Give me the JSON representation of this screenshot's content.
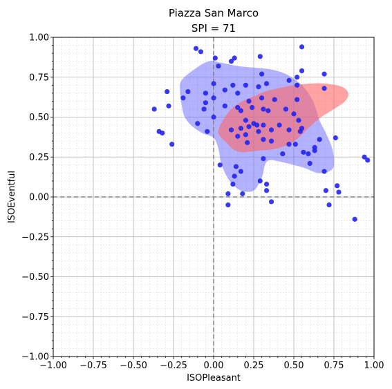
{
  "chart_data": {
    "type": "scatter",
    "title": "Piazza San Marco",
    "subtitle": "SPI = 71",
    "xlabel": "ISOPleasant",
    "ylabel": "ISOEventful",
    "xlim": [
      -1.0,
      1.0
    ],
    "ylim": [
      -1.0,
      1.0
    ],
    "xticks": [
      "−1.00",
      "−0.75",
      "−0.50",
      "−0.25",
      "0.00",
      "0.25",
      "0.50",
      "0.75",
      "1.00"
    ],
    "yticks": [
      "−1.00",
      "−0.75",
      "−0.50",
      "−0.25",
      "0.00",
      "0.25",
      "0.50",
      "0.75",
      "1.00"
    ],
    "grid": true,
    "colors": {
      "points": "#2222ee",
      "blue_region": "#6666ff",
      "red_region": "#ff6666",
      "crosshair": "#808080"
    },
    "regions": [
      {
        "color": "blue",
        "outline": [
          [
            -0.2,
            0.73
          ],
          [
            -0.12,
            0.8
          ],
          [
            -0.03,
            0.85
          ],
          [
            0.05,
            0.84
          ],
          [
            0.15,
            0.82
          ],
          [
            0.25,
            0.81
          ],
          [
            0.35,
            0.8
          ],
          [
            0.45,
            0.77
          ],
          [
            0.55,
            0.7
          ],
          [
            0.62,
            0.6
          ],
          [
            0.66,
            0.48
          ],
          [
            0.7,
            0.4
          ],
          [
            0.74,
            0.3
          ],
          [
            0.75,
            0.2
          ],
          [
            0.72,
            0.16
          ],
          [
            0.65,
            0.15
          ],
          [
            0.57,
            0.18
          ],
          [
            0.5,
            0.2
          ],
          [
            0.42,
            0.22
          ],
          [
            0.35,
            0.23
          ],
          [
            0.32,
            0.2
          ],
          [
            0.3,
            0.12
          ],
          [
            0.25,
            0.04
          ],
          [
            0.17,
            0.04
          ],
          [
            0.1,
            0.1
          ],
          [
            0.05,
            0.2
          ],
          [
            0.03,
            0.3
          ],
          [
            0.0,
            0.37
          ],
          [
            -0.07,
            0.4
          ],
          [
            -0.13,
            0.44
          ],
          [
            -0.18,
            0.5
          ],
          [
            -0.2,
            0.58
          ],
          [
            -0.21,
            0.66
          ]
        ]
      },
      {
        "color": "red",
        "outline": [
          [
            0.03,
            0.42
          ],
          [
            0.07,
            0.5
          ],
          [
            0.12,
            0.56
          ],
          [
            0.18,
            0.6
          ],
          [
            0.25,
            0.63
          ],
          [
            0.32,
            0.66
          ],
          [
            0.4,
            0.68
          ],
          [
            0.5,
            0.7
          ],
          [
            0.6,
            0.71
          ],
          [
            0.7,
            0.71
          ],
          [
            0.8,
            0.69
          ],
          [
            0.84,
            0.65
          ],
          [
            0.82,
            0.6
          ],
          [
            0.75,
            0.55
          ],
          [
            0.67,
            0.5
          ],
          [
            0.6,
            0.44
          ],
          [
            0.54,
            0.38
          ],
          [
            0.47,
            0.33
          ],
          [
            0.38,
            0.3
          ],
          [
            0.28,
            0.29
          ],
          [
            0.18,
            0.28
          ],
          [
            0.12,
            0.3
          ],
          [
            0.08,
            0.34
          ],
          [
            0.04,
            0.38
          ]
        ]
      }
    ],
    "points": [
      [
        0.55,
        0.94
      ],
      [
        -0.11,
        0.93
      ],
      [
        -0.08,
        0.91
      ],
      [
        0.01,
        0.87
      ],
      [
        0.29,
        0.88
      ],
      [
        0.13,
        0.87
      ],
      [
        0.11,
        0.85
      ],
      [
        0.03,
        0.82
      ],
      [
        0.55,
        0.79
      ],
      [
        0.52,
        0.75
      ],
      [
        0.69,
        0.77
      ],
      [
        0.47,
        0.73
      ],
      [
        0.3,
        0.77
      ],
      [
        -0.29,
        0.66
      ],
      [
        -0.16,
        0.66
      ],
      [
        -0.19,
        0.62
      ],
      [
        0.07,
        0.67
      ],
      [
        0.12,
        0.7
      ],
      [
        0.2,
        0.7
      ],
      [
        0.28,
        0.69
      ],
      [
        0.33,
        0.71
      ],
      [
        0.0,
        0.71
      ],
      [
        0.15,
        0.65
      ],
      [
        0.22,
        0.6
      ],
      [
        0.3,
        0.62
      ],
      [
        0.38,
        0.61
      ],
      [
        0.52,
        0.61
      ],
      [
        0.52,
        0.7
      ],
      [
        0.69,
        0.68
      ],
      [
        -0.05,
        0.65
      ],
      [
        0.0,
        0.62
      ],
      [
        -0.05,
        0.59
      ],
      [
        -0.37,
        0.55
      ],
      [
        -0.28,
        0.57
      ],
      [
        -0.06,
        0.55
      ],
      [
        0.07,
        0.57
      ],
      [
        0.15,
        0.56
      ],
      [
        0.17,
        0.54
      ],
      [
        0.24,
        0.56
      ],
      [
        0.31,
        0.55
      ],
      [
        0.34,
        0.54
      ],
      [
        0.45,
        0.55
      ],
      [
        0.5,
        0.52
      ],
      [
        0.53,
        0.48
      ],
      [
        0.0,
        0.5
      ],
      [
        -0.1,
        0.46
      ],
      [
        0.2,
        0.48
      ],
      [
        0.27,
        0.45
      ],
      [
        0.31,
        0.45
      ],
      [
        0.36,
        0.42
      ],
      [
        0.41,
        0.45
      ],
      [
        0.47,
        0.42
      ],
      [
        0.55,
        0.43
      ],
      [
        0.17,
        0.43
      ],
      [
        0.11,
        0.42
      ],
      [
        0.2,
        0.39
      ],
      [
        0.22,
        0.44
      ],
      [
        0.25,
        0.46
      ],
      [
        -0.34,
        0.41
      ],
      [
        -0.32,
        0.4
      ],
      [
        -0.04,
        0.41
      ],
      [
        0.15,
        0.38
      ],
      [
        0.28,
        0.41
      ],
      [
        0.54,
        0.41
      ],
      [
        0.31,
        0.36
      ],
      [
        0.21,
        0.34
      ],
      [
        0.36,
        0.35
      ],
      [
        0.47,
        0.33
      ],
      [
        0.51,
        0.33
      ],
      [
        0.66,
        0.36
      ],
      [
        0.76,
        0.37
      ],
      [
        -0.26,
        0.33
      ],
      [
        0.43,
        0.27
      ],
      [
        0.56,
        0.28
      ],
      [
        0.59,
        0.27
      ],
      [
        0.63,
        0.29
      ],
      [
        0.63,
        0.31
      ],
      [
        0.6,
        0.21
      ],
      [
        0.69,
        0.16
      ],
      [
        0.04,
        0.2
      ],
      [
        0.14,
        0.19
      ],
      [
        0.17,
        0.16
      ],
      [
        0.31,
        0.24
      ],
      [
        0.13,
        0.13
      ],
      [
        0.12,
        0.08
      ],
      [
        0.29,
        0.1
      ],
      [
        0.33,
        0.08
      ],
      [
        0.7,
        0.04
      ],
      [
        0.33,
        0.04
      ],
      [
        0.09,
        0.02
      ],
      [
        0.18,
        0.02
      ],
      [
        0.77,
        0.07
      ],
      [
        0.78,
        0.03
      ],
      [
        0.94,
        0.25
      ],
      [
        0.96,
        0.23
      ],
      [
        0.09,
        -0.05
      ],
      [
        0.36,
        -0.03
      ],
      [
        0.72,
        -0.05
      ],
      [
        0.88,
        -0.14
      ]
    ]
  }
}
